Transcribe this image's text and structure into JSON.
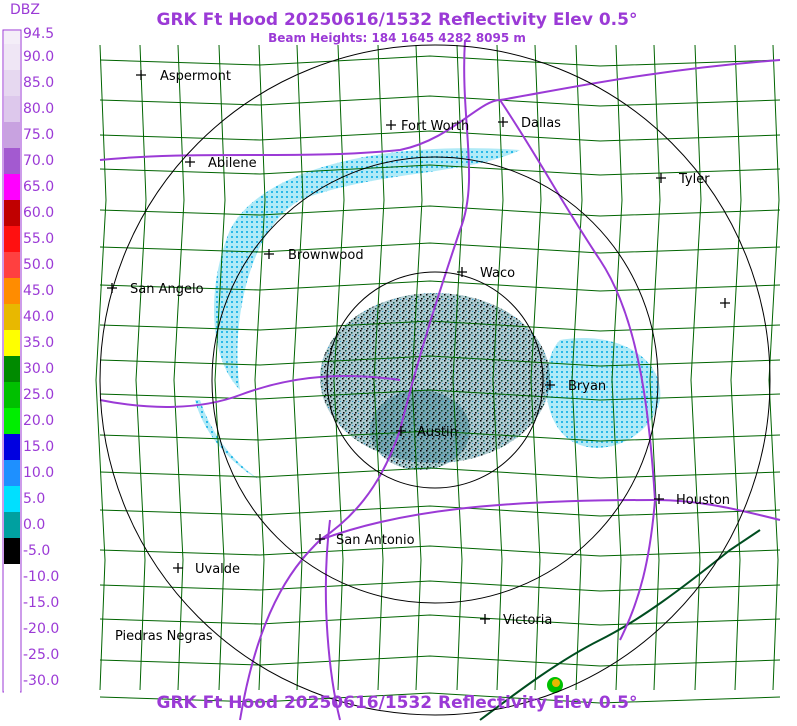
{
  "header": {
    "title": "GRK Ft Hood 20250616/1532 Reflectivity Elev 0.5°",
    "subtitle": "Beam Heights: 184 1645 4282 8095 m"
  },
  "footer": {
    "title": "GRK Ft Hood 20250616/1532 Reflectivity Elev 0.5°"
  },
  "legend": {
    "unit": "DBZ",
    "entries": [
      {
        "label": "94.5",
        "color": "#f4eef8"
      },
      {
        "label": "90.0",
        "color": "#efe6f5"
      },
      {
        "label": "85.0",
        "color": "#e6d8f0"
      },
      {
        "label": "80.0",
        "color": "#ddc8ec"
      },
      {
        "label": "75.0",
        "color": "#c8a2e0"
      },
      {
        "label": "70.0",
        "color": "#a35ad0"
      },
      {
        "label": "65.0",
        "color": "#ff00ff"
      },
      {
        "label": "60.0",
        "color": "#c00000"
      },
      {
        "label": "55.0",
        "color": "#ff1010"
      },
      {
        "label": "50.0",
        "color": "#ff4040"
      },
      {
        "label": "45.0",
        "color": "#ff8c00"
      },
      {
        "label": "40.0",
        "color": "#e8b800"
      },
      {
        "label": "35.0",
        "color": "#ffff00"
      },
      {
        "label": "30.0",
        "color": "#008a00"
      },
      {
        "label": "25.0",
        "color": "#00c000"
      },
      {
        "label": "20.0",
        "color": "#00ee00"
      },
      {
        "label": "15.0",
        "color": "#0000e0"
      },
      {
        "label": "10.0",
        "color": "#1e90ff"
      },
      {
        "label": "5.0",
        "color": "#00e0ff"
      },
      {
        "label": "0.0",
        "color": "#00a0a0"
      },
      {
        "label": "-5.0",
        "color": "#000000"
      },
      {
        "label": "-10.0",
        "color": "#ffffff"
      },
      {
        "label": "-15.0",
        "color": "#ffffff"
      },
      {
        "label": "-20.0",
        "color": "#ffffff"
      },
      {
        "label": "-25.0",
        "color": "#ffffff"
      },
      {
        "label": "-30.0",
        "color": "#ffffff"
      }
    ]
  },
  "cities": [
    "Aspermont",
    "Fort Worth",
    "Dallas",
    "Abilene",
    "Tyler",
    "Brownwood",
    "Waco",
    "San Angelo",
    "Bryan",
    "Austin",
    "Houston",
    "San Antonio",
    "Uvalde",
    "Victoria",
    "Piedras Negras"
  ]
}
